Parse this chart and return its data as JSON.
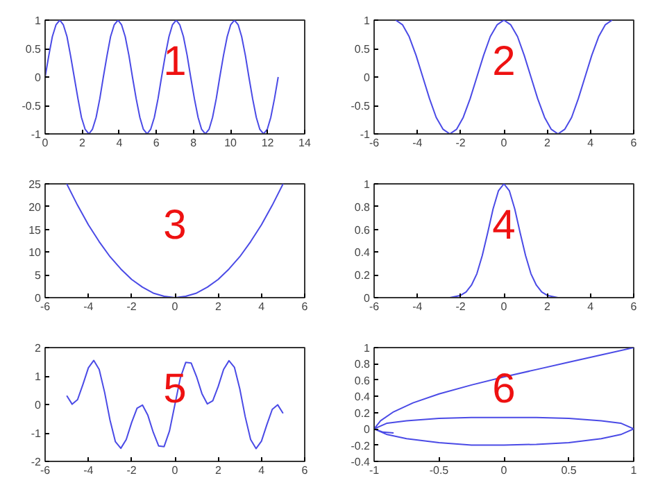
{
  "chart_data": [
    {
      "type": "line",
      "annotations": [
        "1"
      ],
      "xlim": [
        0,
        14
      ],
      "ylim": [
        -1,
        1
      ],
      "xticks": [
        0,
        2,
        4,
        6,
        8,
        10,
        12,
        14
      ],
      "yticks": [
        -1,
        -0.5,
        0,
        0.5,
        1
      ],
      "grid": false,
      "series": [
        {
          "color": "#4a4ae6",
          "x": [
            0,
            0.2,
            0.39,
            0.59,
            0.79,
            0.98,
            1.18,
            1.37,
            1.57,
            1.77,
            1.96,
            2.16,
            2.36,
            2.55,
            2.75,
            2.95,
            3.14,
            3.34,
            3.53,
            3.73,
            3.93,
            4.12,
            4.32,
            4.52,
            4.71,
            4.91,
            5.11,
            5.3,
            5.5,
            5.69,
            5.89,
            6.09,
            6.28,
            6.48,
            6.68,
            6.87,
            7.07,
            7.26,
            7.46,
            7.66,
            7.85,
            8.05,
            8.25,
            8.44,
            8.64,
            8.84,
            9.03,
            9.23,
            9.42,
            9.62,
            9.82,
            10.01,
            10.21,
            10.41,
            10.6,
            10.8,
            10.99,
            11.19,
            11.39,
            11.58,
            11.78,
            11.98,
            12.17,
            12.37,
            12.57
          ],
          "values": [
            0,
            0.38,
            0.71,
            0.92,
            1,
            0.92,
            0.71,
            0.38,
            0,
            -0.38,
            -0.71,
            -0.92,
            -1,
            -0.92,
            -0.71,
            -0.38,
            0,
            0.38,
            0.71,
            0.92,
            1,
            0.92,
            0.71,
            0.38,
            0,
            -0.38,
            -0.71,
            -0.92,
            -1,
            -0.92,
            -0.71,
            -0.38,
            0,
            0.38,
            0.71,
            0.92,
            1,
            0.92,
            0.71,
            0.38,
            0,
            -0.38,
            -0.71,
            -0.92,
            -1,
            -0.92,
            -0.71,
            -0.38,
            0,
            0.38,
            0.71,
            0.92,
            1,
            0.92,
            0.71,
            0.38,
            0,
            -0.38,
            -0.71,
            -0.92,
            -1,
            -0.92,
            -0.71,
            -0.38,
            0
          ]
        }
      ]
    },
    {
      "type": "line",
      "annotations": [
        "2"
      ],
      "xlim": [
        -6,
        6
      ],
      "ylim": [
        -1,
        1
      ],
      "xticks": [
        -6,
        -4,
        -2,
        0,
        2,
        4,
        6
      ],
      "yticks": [
        -1,
        -0.5,
        0,
        0.5,
        1
      ],
      "grid": false,
      "series": [
        {
          "color": "#4a4ae6",
          "x": [
            -5,
            -4.69,
            -4.38,
            -4.06,
            -3.75,
            -3.44,
            -3.13,
            -2.81,
            -2.5,
            -2.19,
            -1.88,
            -1.56,
            -1.25,
            -0.94,
            -0.63,
            -0.31,
            0,
            0.31,
            0.63,
            0.94,
            1.25,
            1.56,
            1.88,
            2.19,
            2.5,
            2.81,
            3.13,
            3.44,
            3.75,
            4.06,
            4.38,
            4.69,
            5
          ],
          "values": [
            1,
            0.92,
            0.71,
            0.38,
            0,
            -0.38,
            -0.71,
            -0.92,
            -1,
            -0.92,
            -0.71,
            -0.38,
            0,
            0.38,
            0.71,
            0.92,
            1,
            0.92,
            0.71,
            0.38,
            0,
            -0.38,
            -0.71,
            -0.92,
            -1,
            -0.92,
            -0.71,
            -0.38,
            0,
            0.38,
            0.71,
            0.92,
            1
          ]
        }
      ]
    },
    {
      "type": "line",
      "annotations": [
        "3"
      ],
      "xlim": [
        -6,
        6
      ],
      "ylim": [
        0,
        25
      ],
      "xticks": [
        -6,
        -4,
        -2,
        0,
        2,
        4,
        6
      ],
      "yticks": [
        0,
        5,
        10,
        15,
        20,
        25
      ],
      "grid": false,
      "series": [
        {
          "color": "#4a4ae6",
          "x": [
            -5,
            -4.5,
            -4,
            -3.5,
            -3,
            -2.5,
            -2,
            -1.5,
            -1,
            -0.5,
            0,
            0.5,
            1,
            1.5,
            2,
            2.5,
            3,
            3.5,
            4,
            4.5,
            5
          ],
          "values": [
            25,
            20.3,
            16,
            12.3,
            9,
            6.3,
            4,
            2.3,
            1,
            0.3,
            0,
            0.3,
            1,
            2.3,
            4,
            6.3,
            9,
            12.3,
            16,
            20.3,
            25
          ]
        }
      ]
    },
    {
      "type": "line",
      "annotations": [
        "4"
      ],
      "xlim": [
        -6,
        6
      ],
      "ylim": [
        0,
        1
      ],
      "xticks": [
        -6,
        -4,
        -2,
        0,
        2,
        4,
        6
      ],
      "yticks": [
        0,
        0.2,
        0.4,
        0.6,
        0.8,
        1
      ],
      "grid": false,
      "series": [
        {
          "color": "#4a4ae6",
          "x": [
            -3,
            -2.5,
            -2,
            -1.75,
            -1.5,
            -1.25,
            -1,
            -0.75,
            -0.5,
            -0.25,
            0,
            0.25,
            0.5,
            0.75,
            1,
            1.25,
            1.5,
            1.75,
            2,
            2.5,
            3
          ],
          "values": [
            0,
            0,
            0.02,
            0.05,
            0.11,
            0.21,
            0.37,
            0.57,
            0.78,
            0.94,
            1,
            0.94,
            0.78,
            0.57,
            0.37,
            0.21,
            0.11,
            0.05,
            0.02,
            0,
            0
          ]
        }
      ]
    },
    {
      "type": "line",
      "annotations": [
        "5"
      ],
      "xlim": [
        -6,
        6
      ],
      "ylim": [
        -2,
        2
      ],
      "xticks": [
        -6,
        -4,
        -2,
        0,
        2,
        4,
        6
      ],
      "yticks": [
        -2,
        -1,
        0,
        1,
        2
      ],
      "grid": false,
      "series": [
        {
          "color": "#4a4ae6",
          "x": [
            -5,
            -4.75,
            -4.5,
            -4.25,
            -4,
            -3.75,
            -3.5,
            -3.25,
            -3,
            -2.75,
            -2.5,
            -2.25,
            -2,
            -1.75,
            -1.5,
            -1.25,
            -1,
            -0.75,
            -0.5,
            -0.25,
            0,
            0.25,
            0.5,
            0.75,
            1,
            1.25,
            1.5,
            1.75,
            2,
            2.25,
            2.5,
            2.75,
            3,
            3.25,
            3.5,
            3.75,
            4,
            4.25,
            4.5,
            4.75,
            5
          ],
          "values": [
            0.31,
            0.01,
            0.17,
            0.71,
            1.29,
            1.55,
            1.23,
            0.43,
            -0.55,
            -1.31,
            -1.54,
            -1.23,
            -0.63,
            -0.13,
            -0.02,
            -0.38,
            -0.98,
            -1.46,
            -1.48,
            -0.93,
            0,
            0.93,
            1.48,
            1.46,
            0.98,
            0.38,
            0.02,
            0.13,
            0.63,
            1.23,
            1.54,
            1.31,
            0.55,
            -0.43,
            -1.23,
            -1.55,
            -1.29,
            -0.71,
            -0.17,
            -0.01,
            -0.31
          ]
        }
      ]
    },
    {
      "type": "line",
      "annotations": [
        "6"
      ],
      "xlim": [
        -1,
        1
      ],
      "ylim": [
        -0.4,
        1
      ],
      "xticks": [
        -1,
        -0.5,
        0,
        0.5,
        1
      ],
      "yticks": [
        -0.4,
        -0.2,
        0,
        0.2,
        0.4,
        0.6,
        0.8,
        1
      ],
      "grid": false,
      "series": [
        {
          "color": "#4a4ae6",
          "x": [
            1,
            0.75,
            0.5,
            0.25,
            0,
            -0.25,
            -0.5,
            -0.7,
            -0.85,
            -0.95,
            -1,
            -0.9,
            -0.75,
            -0.5,
            -0.25,
            0,
            0.25,
            0.5,
            0.75,
            0.9,
            1,
            0.9,
            0.75,
            0.5,
            0.25,
            0,
            -0.25,
            -0.5,
            -0.75,
            -0.9,
            -1,
            -0.93,
            -0.85
          ],
          "values": [
            1,
            0.91,
            0.82,
            0.73,
            0.64,
            0.54,
            0.43,
            0.32,
            0.21,
            0.1,
            0,
            0.07,
            0.1,
            0.13,
            0.14,
            0.14,
            0.14,
            0.13,
            0.1,
            0.07,
            0,
            -0.07,
            -0.12,
            -0.17,
            -0.19,
            -0.2,
            -0.2,
            -0.17,
            -0.12,
            -0.07,
            0,
            -0.04,
            -0.05
          ]
        }
      ]
    }
  ]
}
